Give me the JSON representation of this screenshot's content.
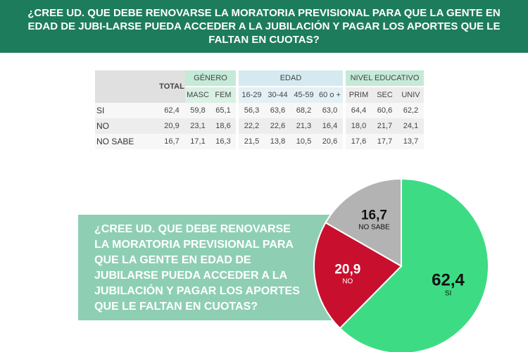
{
  "header": {
    "title": "¿CREE UD. QUE DEBE RENOVARSE LA MORATORIA PREVISIONAL PARA QUE LA GENTE EN EDAD DE JUBI-LARSE PUEDA ACCEDER A LA JUBILACIÓN Y PAGAR LOS APORTES QUE LE FALTAN EN CUOTAS?"
  },
  "table": {
    "total_label": "TOTAL",
    "groups": {
      "genero": "GÉNERO",
      "edad": "EDAD",
      "nivel": "NIVEL EDUCATIVO"
    },
    "columns": [
      "MASC",
      "FEM",
      "16-29",
      "30-44",
      "45-59",
      "60 o +",
      "PRIM",
      "SEC",
      "UNIV"
    ],
    "rows": [
      {
        "label": "SI",
        "total": "62,4",
        "values": [
          "59,8",
          "65,1",
          "56,3",
          "63,6",
          "68,2",
          "63,0",
          "64,4",
          "60,6",
          "62,2"
        ]
      },
      {
        "label": "NO",
        "total": "20,9",
        "values": [
          "23,1",
          "18,6",
          "22,2",
          "22,6",
          "21,3",
          "16,4",
          "18,0",
          "21,7",
          "24,1"
        ]
      },
      {
        "label": "NO SABE",
        "total": "16,7",
        "values": [
          "17,1",
          "16,3",
          "21,5",
          "13,8",
          "10,5",
          "20,6",
          "17,6",
          "17,7",
          "13,7"
        ]
      }
    ]
  },
  "question_box": {
    "text": "¿CREE UD. QUE DEBE RENOVARSE LA MORATORIA PREVISIONAL PARA QUE LA GENTE EN EDAD DE JUBILARSE PUEDA ACCEDER A LA JUBILACIÓN Y PAGAR LOS APORTES QUE LE FALTAN EN CUOTAS?",
    "lines": [
      "¿CREE UD. QUE DEBE RENOVARSE",
      "LA MORATORIA PREVISIONAL PARA",
      "QUE LA GENTE EN EDAD DE",
      "JUBILARSE PUEDA ACCEDER A LA",
      "JUBILACIÓN Y PAGAR LOS APORTES",
      "QUE LE FALTAN EN CUOTAS?"
    ]
  },
  "chart_data": {
    "type": "pie",
    "slices": [
      {
        "label": "SI",
        "value": 62.4,
        "value_text": "62,4",
        "color": "#3ddc84"
      },
      {
        "label": "NO",
        "value": 20.9,
        "value_text": "20,9",
        "color": "#c8102e"
      },
      {
        "label": "NO SABE",
        "value": 16.7,
        "value_text": "16,7",
        "color": "#b3b3b3"
      }
    ],
    "label_colors": {
      "SI": "#111111",
      "NO": "#ffffff",
      "NO SABE": "#111111"
    }
  }
}
